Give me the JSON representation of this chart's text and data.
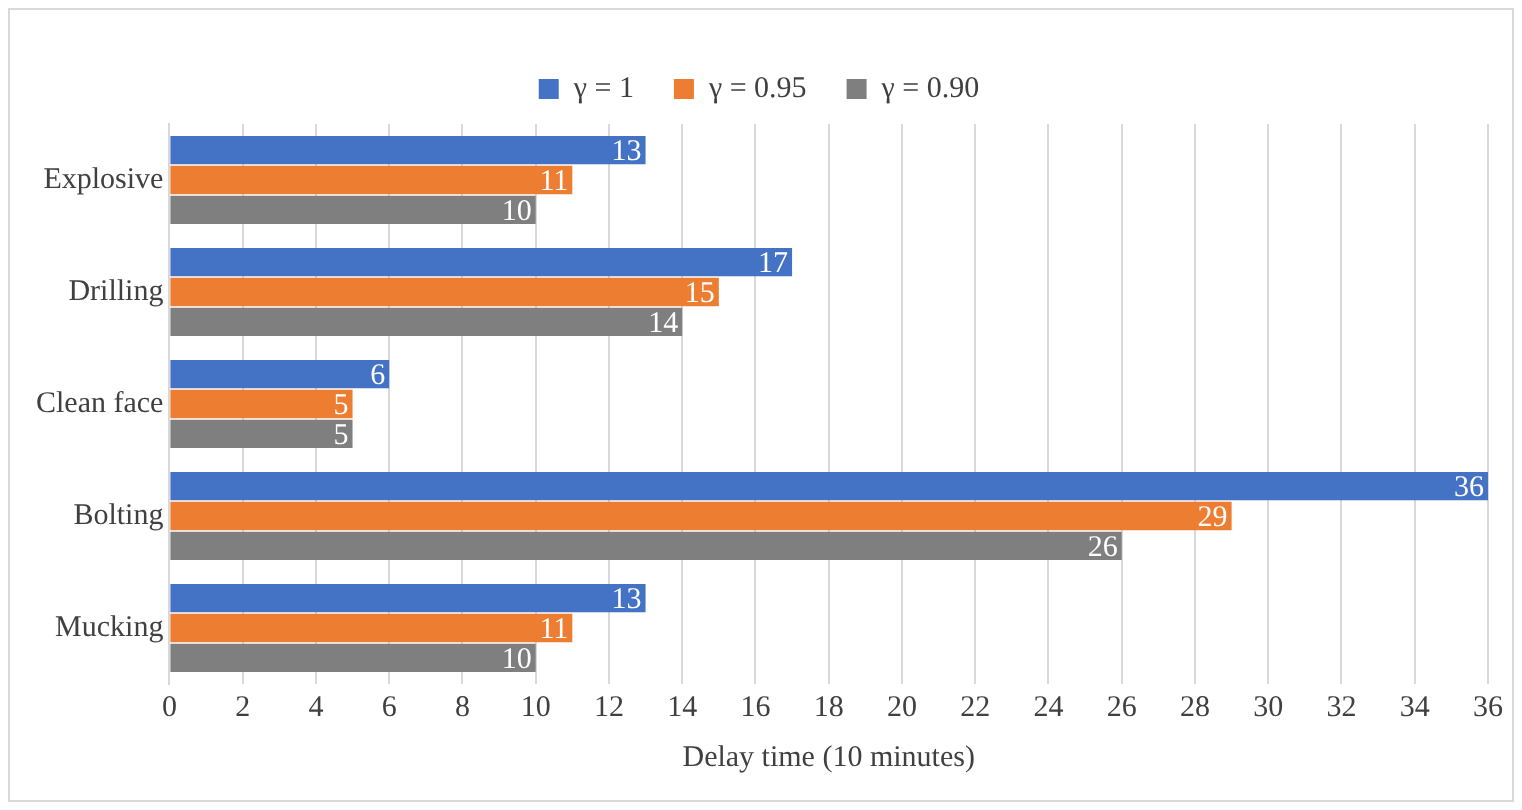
{
  "chart_data": {
    "type": "bar",
    "orientation": "horizontal",
    "xlabel": "Delay time (10 minutes)",
    "categories": [
      "Explosive",
      "Drilling",
      "Clean face",
      "Bolting",
      "Mucking"
    ],
    "series": [
      {
        "name": "γ = 1",
        "color": "#4472c4",
        "values": [
          13,
          17,
          6,
          36,
          13
        ]
      },
      {
        "name": "γ = 0.95",
        "color": "#ed7d31",
        "values": [
          11,
          15,
          5,
          29,
          11
        ]
      },
      {
        "name": "γ = 0.90",
        "color": "#7f7f7f",
        "values": [
          10,
          14,
          5,
          26,
          10
        ]
      }
    ],
    "xlim": [
      0,
      36
    ],
    "xticks": [
      0,
      2,
      4,
      6,
      8,
      10,
      12,
      14,
      16,
      18,
      20,
      22,
      24,
      26,
      28,
      30,
      32,
      34,
      36
    ],
    "grid": "x",
    "legend": "top",
    "data_labels": true
  }
}
